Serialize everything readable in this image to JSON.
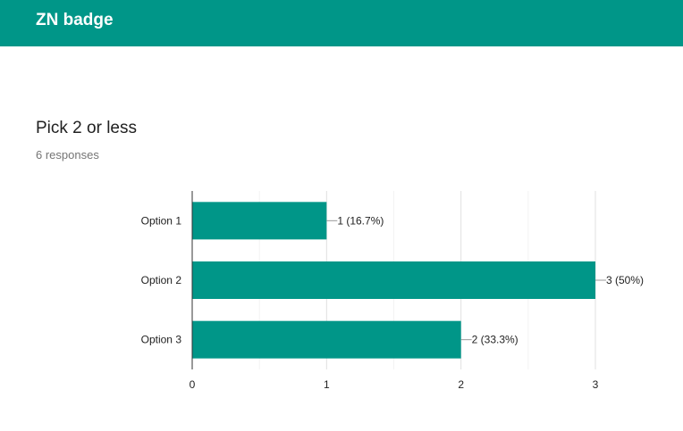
{
  "header": {
    "title": "ZN badge",
    "color": "#009688"
  },
  "question": {
    "title": "Pick 2 or less",
    "responses": "6 responses"
  },
  "chart_data": {
    "type": "bar",
    "orientation": "horizontal",
    "categories": [
      "Option 1",
      "Option 2",
      "Option 3"
    ],
    "values": [
      1,
      3,
      2
    ],
    "labels": [
      "1 (16.7%)",
      "3 (50%)",
      "2 (33.3%)"
    ],
    "xlim": [
      0,
      3
    ],
    "xticks": [
      0,
      1,
      2,
      3
    ],
    "grid": true,
    "bar_color": "#009688"
  }
}
